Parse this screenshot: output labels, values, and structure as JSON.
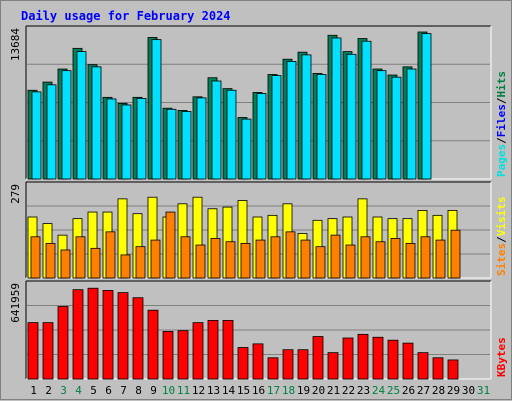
{
  "page": {
    "title": "Daily usage for February 2024"
  },
  "chart_data": {
    "type": "bar",
    "title": "Daily usage for February 2024",
    "x": [
      "1",
      "2",
      "3",
      "4",
      "5",
      "6",
      "7",
      "8",
      "9",
      "10",
      "11",
      "12",
      "13",
      "14",
      "15",
      "16",
      "17",
      "18",
      "19",
      "20",
      "21",
      "22",
      "23",
      "24",
      "25",
      "26",
      "27",
      "28",
      "29",
      "30",
      "31"
    ],
    "weekend_days": [
      3,
      4,
      10,
      11,
      17,
      18,
      24,
      25,
      31
    ],
    "days_with_data": 29,
    "panels": [
      {
        "id": "pages-files-hits",
        "y_tick_label": "13684",
        "y_max": 13684,
        "side_labels": [
          "Pages",
          "/",
          "Files",
          "/",
          "Hits"
        ],
        "side_label_colors": [
          "#00e0e0",
          "#000000",
          "#0000ff",
          "#000000",
          "#008040"
        ],
        "series": [
          {
            "name": "Hits",
            "color": "#00805a",
            "values": [
              8150,
              8900,
              10100,
              12000,
              10500,
              7500,
              6950,
              7500,
              13000,
              6500,
              6300,
              7550,
              9300,
              8300,
              5650,
              7950,
              9600,
              11000,
              11650,
              9700,
              13200,
              11700,
              12900,
              10100,
              9550,
              10300,
              13500,
              0,
              0
            ]
          },
          {
            "name": "Files",
            "color": "#0000ff",
            "values": [
              0,
              0,
              0,
              0,
              0,
              0,
              0,
              0,
              0,
              0,
              0,
              0,
              0,
              0,
              0,
              0,
              0,
              0,
              0,
              0,
              0,
              0,
              0,
              0,
              0,
              0,
              0,
              0,
              0
            ]
          },
          {
            "name": "Pages",
            "color": "#00e0ff",
            "values": [
              8000,
              8650,
              9950,
              11700,
              10300,
              7350,
              6800,
              7400,
              12800,
              6400,
              6200,
              7450,
              9000,
              8150,
              5500,
              7850,
              9500,
              10800,
              11400,
              9600,
              12950,
              11450,
              12650,
              9950,
              9350,
              10100,
              13350,
              0,
              0
            ]
          }
        ]
      },
      {
        "id": "visits-sites",
        "y_tick_label": "279",
        "y_max": 279,
        "side_labels": [
          "Sites",
          "/",
          "Visits"
        ],
        "side_label_colors": [
          "#ff8000",
          "#000000",
          "#ffff00"
        ],
        "series": [
          {
            "name": "Visits",
            "color": "#ffff00",
            "values": [
              185,
              165,
              130,
              180,
              200,
              200,
              240,
              195,
              245,
              185,
              225,
              245,
              210,
              215,
              235,
              185,
              190,
              225,
              135,
              175,
              180,
              185,
              240,
              185,
              180,
              180,
              205,
              190,
              205
            ]
          },
          {
            "name": "Sites",
            "color": "#ff8000",
            "values": [
              125,
              105,
              85,
              125,
              90,
              140,
              70,
              95,
              115,
              200,
              125,
              100,
              120,
              110,
              105,
              115,
              125,
              140,
              115,
              95,
              130,
              100,
              125,
              110,
              120,
              105,
              125,
              115,
              145
            ]
          }
        ]
      },
      {
        "id": "kbytes",
        "y_tick_label": "641959",
        "y_max": 641959,
        "side_labels": [
          "KBytes"
        ],
        "side_label_colors": [
          "#ff0000"
        ],
        "series": [
          {
            "name": "KBytes",
            "color": "#ff0000",
            "values": [
              385000,
              385000,
              495000,
              610000,
              620000,
              605000,
              590000,
              555000,
              470000,
              325000,
              330000,
              385000,
              400000,
              400000,
              215000,
              240000,
              145000,
              200000,
              200000,
              290000,
              180000,
              280000,
              305000,
              285000,
              265000,
              245000,
              180000,
              145000,
              130000
            ]
          }
        ]
      }
    ]
  }
}
